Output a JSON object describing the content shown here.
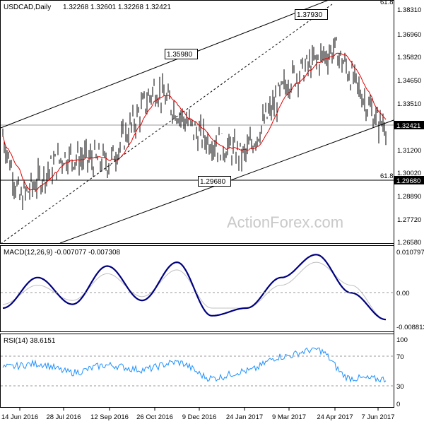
{
  "main": {
    "header": "USDCAD,Daily",
    "ohlc": "1.32268 1.32601 1.32268 1.32421",
    "watermark": "ActionForex.com",
    "fib_top_label": "61.8",
    "fib_label": "61.8",
    "current_price_label": "1.32421",
    "fib_price_label": "1.29680",
    "annotations": [
      "1.37930",
      "1.35980",
      "1.29680"
    ],
    "y_ticks": [
      "1.38310",
      "1.36960",
      "1.35820",
      "1.34650",
      "1.33510",
      "1.31200",
      "1.30020",
      "1.28890",
      "1.27720",
      "1.26580"
    ]
  },
  "macd": {
    "header": "MACD(12,26,9) -0.007077 -0.007308",
    "y_ticks": [
      "0.010797",
      "0.00",
      "-0.008813"
    ]
  },
  "rsi": {
    "header": "RSI(14) 38.6151",
    "y_ticks": [
      "100",
      "70",
      "30",
      "0"
    ]
  },
  "x_ticks": [
    "14 Jun 2016",
    "28 Jul 2016",
    "12 Sep 2016",
    "26 Oct 2016",
    "9 Dec 2016",
    "24 Jan 2017",
    "9 Mar 2017",
    "24 Apr 2017",
    "7 Jun 2017"
  ],
  "colors": {
    "price_bars": "#000000",
    "moving_average": "#e60000",
    "macd_line": "#000080",
    "signal_line": "#c0c0c0",
    "rsi_line": "#1e90ff",
    "watermark": "#c9c9c9"
  },
  "chart_data": [
    {
      "type": "ohlc",
      "title": "USDCAD,Daily",
      "ylim": [
        1.2658,
        1.3831
      ],
      "x_ticks": [
        "14 Jun 2016",
        "28 Jul 2016",
        "12 Sep 2016",
        "26 Oct 2016",
        "9 Dec 2016",
        "24 Jan 2017",
        "9 Mar 2017",
        "24 Apr 2017",
        "7 Jun 2017"
      ],
      "close_by_tick": [
        1.287,
        1.308,
        1.305,
        1.341,
        1.318,
        1.308,
        1.345,
        1.36,
        1.324
      ],
      "last": {
        "open": 1.32268,
        "high": 1.32601,
        "low": 1.32268,
        "close": 1.32421
      },
      "annotations": [
        {
          "label": "1.37930",
          "value": 1.3793,
          "near": "24 Apr 2017"
        },
        {
          "label": "1.35980",
          "value": 1.3598,
          "near": "26 Oct 2016"
        },
        {
          "label": "1.29680",
          "value": 1.2968,
          "near": "24 Jan 2017"
        }
      ],
      "horizontal_lines": [
        {
          "value": 1.3242
        },
        {
          "value": 1.2968,
          "label": "61.8"
        }
      ],
      "moving_average": "red",
      "channel": "rising, with dashed mid line",
      "grid": false
    },
    {
      "type": "line",
      "title": "MACD(12,26,9) -0.007077 -0.007308",
      "ylim": [
        -0.008813,
        0.010797
      ],
      "series": [
        {
          "name": "MACD",
          "values": [
            -0.004,
            0.004,
            -0.003,
            0.007,
            -0.002,
            0.008,
            -0.006,
            -0.004,
            0.004,
            0.01,
            0.0,
            -0.007
          ]
        },
        {
          "name": "Signal",
          "values": [
            -0.003,
            0.002,
            -0.002,
            0.005,
            -0.001,
            0.006,
            -0.004,
            -0.004,
            0.002,
            0.008,
            0.002,
            -0.007
          ]
        }
      ],
      "zero_line": true
    },
    {
      "type": "line",
      "title": "RSI(14) 38.6151",
      "ylim": [
        0,
        100
      ],
      "levels": [
        70,
        30
      ],
      "series": [
        {
          "name": "RSI(14)",
          "values": [
            55,
            60,
            48,
            58,
            52,
            62,
            40,
            50,
            70,
            80,
            40,
            38.6
          ]
        }
      ]
    }
  ]
}
